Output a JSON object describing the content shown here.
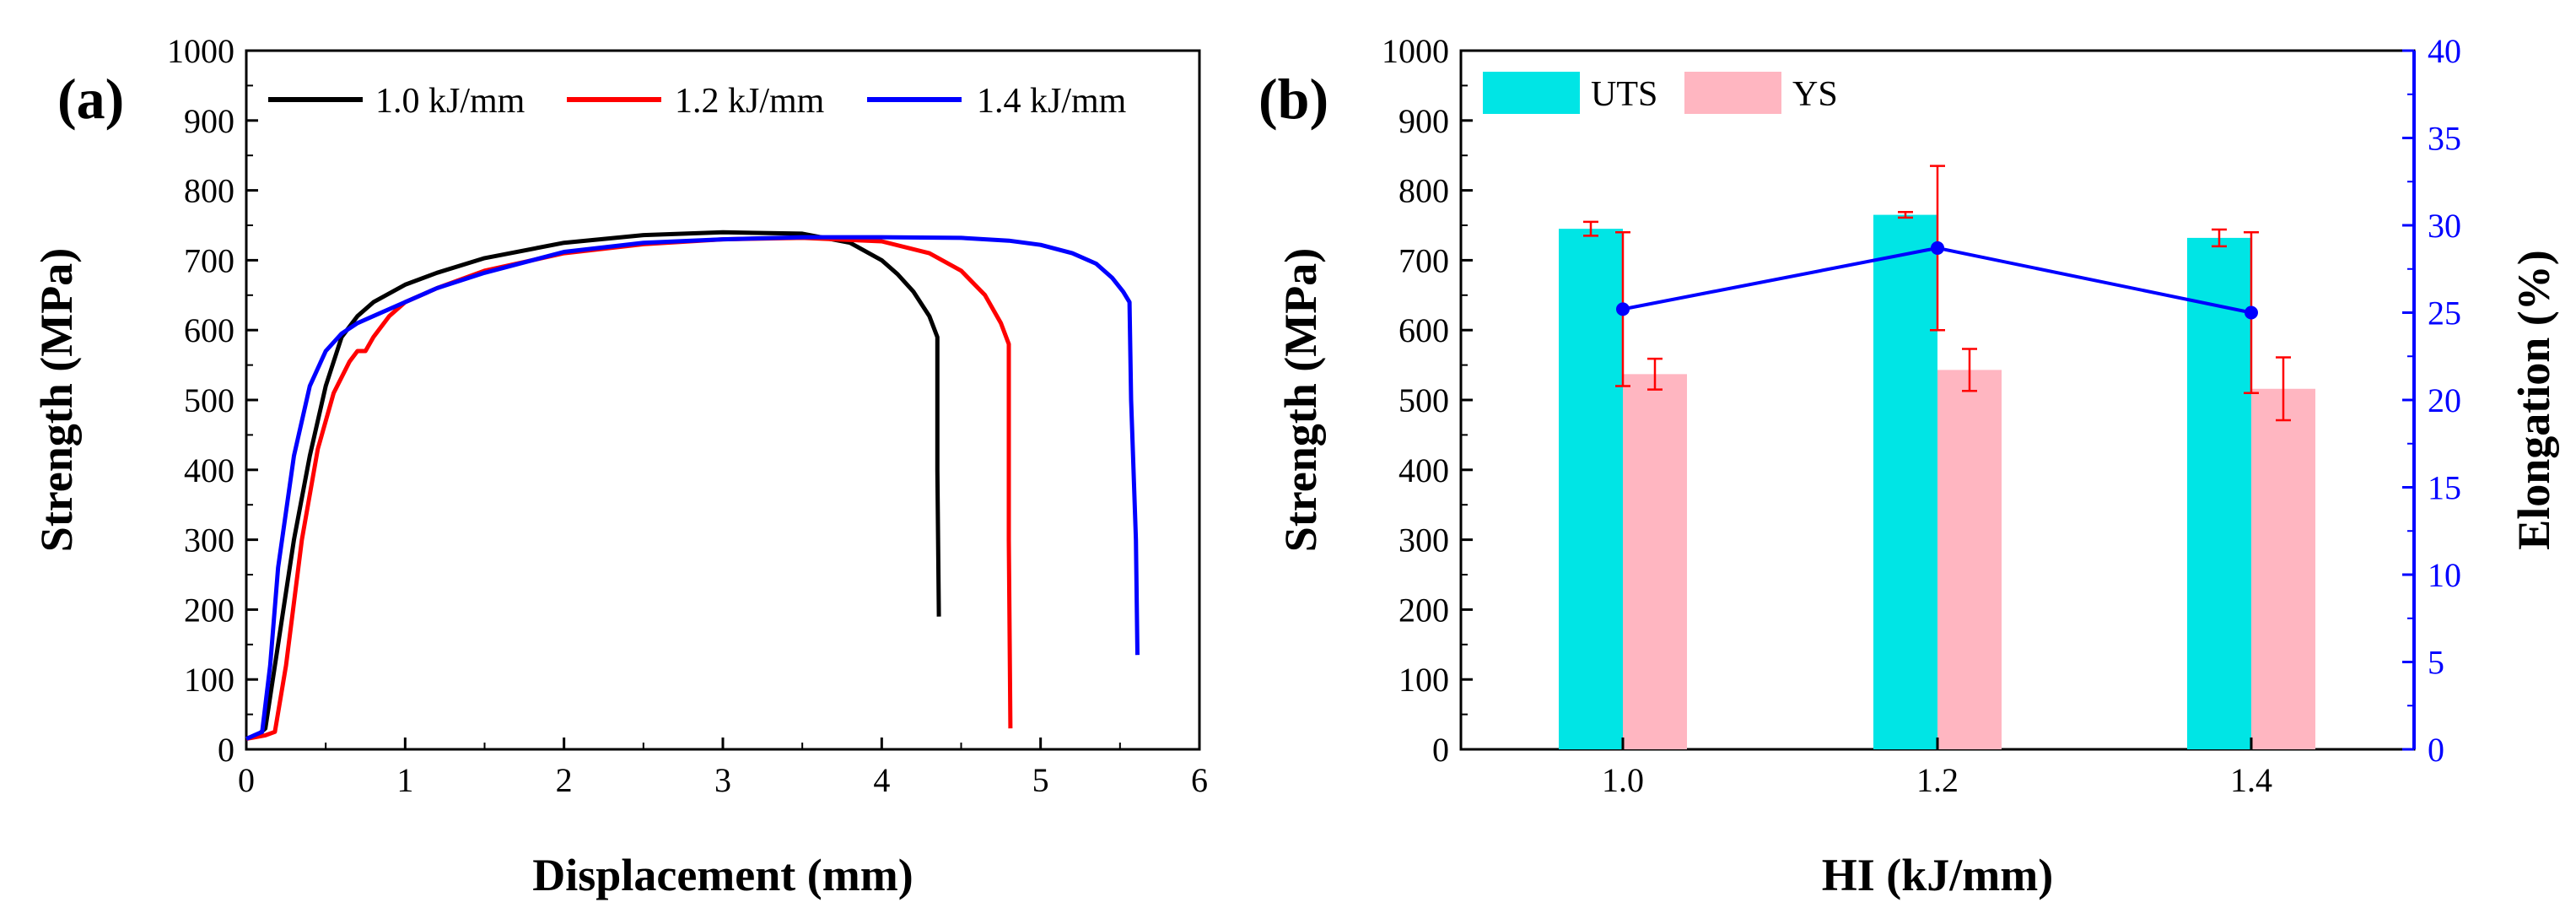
{
  "chart_data": [
    {
      "panel_label": "(a)",
      "type": "line",
      "xlabel": "Displacement (mm)",
      "ylabel": "Strength (MPa)",
      "xlim": [
        0,
        6
      ],
      "ylim": [
        0,
        1000
      ],
      "xticks": [
        0,
        1,
        2,
        3,
        4,
        5,
        6
      ],
      "yticks": [
        0,
        100,
        200,
        300,
        400,
        500,
        600,
        700,
        800,
        900,
        1000
      ],
      "legend_position": "top",
      "series": [
        {
          "name": "1.0 kJ/mm",
          "color": "#000000",
          "x": [
            0,
            0.08,
            0.12,
            0.2,
            0.3,
            0.4,
            0.5,
            0.6,
            0.7,
            0.8,
            1.0,
            1.2,
            1.5,
            2.0,
            2.5,
            3.0,
            3.5,
            3.8,
            4.0,
            4.1,
            4.2,
            4.3,
            4.35,
            4.35,
            4.36
          ],
          "y": [
            15,
            22,
            30,
            150,
            300,
            420,
            520,
            590,
            620,
            640,
            665,
            682,
            703,
            725,
            736,
            740,
            738,
            725,
            700,
            680,
            655,
            620,
            590,
            400,
            190
          ]
        },
        {
          "name": "1.2 kJ/mm",
          "color": "#ff0000",
          "x": [
            0,
            0.12,
            0.18,
            0.25,
            0.35,
            0.45,
            0.55,
            0.65,
            0.7,
            0.75,
            0.8,
            0.9,
            1.0,
            1.2,
            1.5,
            2.0,
            2.5,
            3.0,
            3.5,
            4.0,
            4.3,
            4.5,
            4.65,
            4.75,
            4.8,
            4.8,
            4.81
          ],
          "y": [
            15,
            20,
            25,
            120,
            300,
            430,
            510,
            555,
            570,
            570,
            590,
            620,
            640,
            660,
            685,
            710,
            723,
            730,
            732,
            727,
            710,
            685,
            650,
            610,
            580,
            300,
            30
          ]
        },
        {
          "name": "1.4 kJ/mm",
          "color": "#0000ff",
          "x": [
            0,
            0.05,
            0.1,
            0.15,
            0.2,
            0.3,
            0.4,
            0.5,
            0.6,
            0.7,
            0.8,
            1.0,
            1.2,
            1.5,
            2.0,
            2.5,
            3.0,
            3.5,
            4.0,
            4.5,
            4.8,
            5.0,
            5.2,
            5.35,
            5.45,
            5.52,
            5.56,
            5.57,
            5.6,
            5.61
          ],
          "y": [
            15,
            20,
            25,
            120,
            260,
            420,
            520,
            570,
            595,
            610,
            620,
            640,
            660,
            682,
            712,
            725,
            730,
            733,
            733,
            732,
            728,
            722,
            710,
            695,
            675,
            655,
            640,
            500,
            300,
            135
          ]
        }
      ]
    },
    {
      "panel_label": "(b)",
      "type": "bar",
      "xlabel": "HI (kJ/mm)",
      "ylabel": "Strength (MPa)",
      "y2label": "Elongation (%)",
      "categories": [
        "1.0",
        "1.2",
        "1.4"
      ],
      "ylim": [
        0,
        1000
      ],
      "yticks": [
        0,
        100,
        200,
        300,
        400,
        500,
        600,
        700,
        800,
        900,
        1000
      ],
      "y2lim": [
        0,
        40
      ],
      "y2ticks": [
        0,
        5,
        10,
        15,
        20,
        25,
        30,
        35,
        40
      ],
      "legend_position": "top-left",
      "series": [
        {
          "name": "UTS",
          "color": "#00e5e5",
          "values": [
            745,
            765,
            732
          ],
          "errors": [
            10,
            4,
            12
          ]
        },
        {
          "name": "YS",
          "color": "#ffb6c1",
          "values": [
            537,
            543,
            516
          ],
          "errors": [
            22,
            30,
            45
          ]
        }
      ],
      "line_series": {
        "name": "Elongation",
        "color": "#0000ff",
        "values": [
          25.2,
          28.7,
          25.0
        ],
        "errors": [
          4.4,
          4.7,
          4.6
        ]
      },
      "error_bar_color": "#ff0000",
      "y2_axis_color": "#0000ff"
    }
  ]
}
